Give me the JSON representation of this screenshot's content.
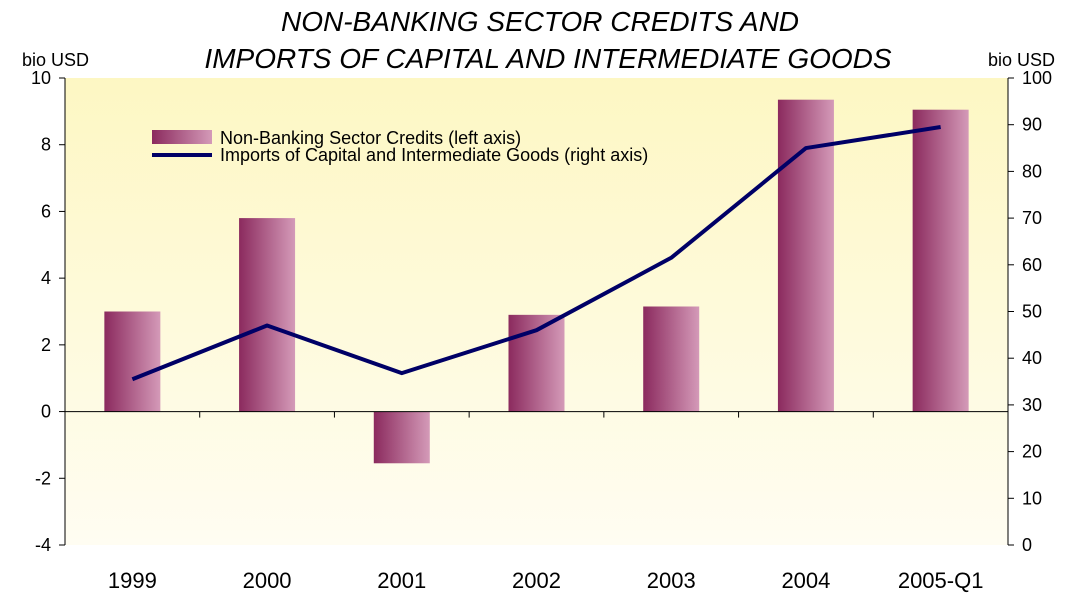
{
  "chart_data": {
    "type": "bar",
    "title": [
      "NON-BANKING SECTOR CREDITS AND",
      "IMPORTS OF CAPITAL AND INTERMEDIATE GOODS"
    ],
    "categories": [
      "1999",
      "2000",
      "2001",
      "2002",
      "2003",
      "2004",
      "2005-Q1"
    ],
    "y_left": {
      "unit": "bio USD",
      "ticks": [
        "10",
        "8",
        "6",
        "4",
        "2",
        "0",
        "-2",
        "-4"
      ],
      "range": [
        -4,
        10
      ]
    },
    "y_right": {
      "unit": "bio USD",
      "ticks": [
        "100",
        "90",
        "80",
        "70",
        "60",
        "50",
        "40",
        "30",
        "20",
        "10",
        "0"
      ],
      "range": [
        0,
        100
      ]
    },
    "series": [
      {
        "name": "Non-Banking Sector Credits (left axis)",
        "type": "bar",
        "axis": "left",
        "values": [
          3.0,
          5.8,
          -1.55,
          2.9,
          3.15,
          9.35,
          9.05
        ]
      },
      {
        "name": "Imports of Capital and Intermediate Goods (right axis)",
        "type": "line",
        "axis": "right",
        "values": [
          35.5,
          47.0,
          36.8,
          46.0,
          61.5,
          85.0,
          89.5
        ]
      }
    ],
    "legend_position": "top-left",
    "grid": false,
    "colors": {
      "bar_dark": "#8b2a5e",
      "bar_light": "#d49ab8",
      "line": "#000066",
      "plot_bg_top": "#fdf7c3",
      "plot_bg_bottom": "#fffdf2"
    }
  }
}
